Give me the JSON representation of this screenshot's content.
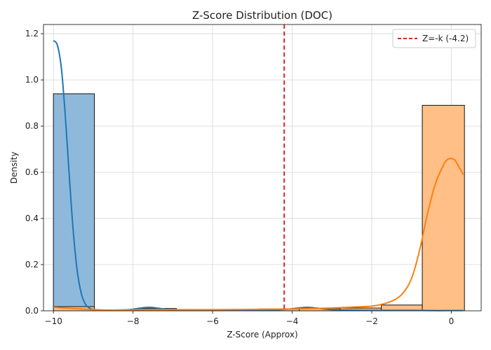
{
  "chart_data": {
    "type": "histogram_kde",
    "title": "Z-Score Distribution (DOC)",
    "xlabel": "Z-Score (Approx)",
    "ylabel": "Density",
    "xlim": [
      -10.25,
      0.75
    ],
    "ylim": [
      0,
      1.24
    ],
    "x_ticks": [
      -10,
      -8,
      -6,
      -4,
      -2,
      0
    ],
    "x_tick_labels": [
      "−10",
      "−8",
      "−6",
      "−4",
      "−2",
      "0"
    ],
    "y_ticks": [
      0.0,
      0.2,
      0.4,
      0.6,
      0.8,
      1.0,
      1.2
    ],
    "y_tick_labels": [
      "0.0",
      "0.2",
      "0.4",
      "0.6",
      "0.8",
      "1.0",
      "1.2"
    ],
    "grid": true,
    "legend_position": "top-right",
    "series": [
      {
        "color": "#1f77b4",
        "bar_color": "#8fb9db",
        "bins": [
          {
            "x0": -10.0,
            "x1": -8.97,
            "value": 0.94
          },
          {
            "x0": -8.97,
            "x1": -7.94,
            "value": 0.002
          },
          {
            "x0": -7.94,
            "x1": -6.91,
            "value": 0.01
          },
          {
            "x0": -6.91,
            "x1": -5.88,
            "value": 0.002
          },
          {
            "x0": -5.88,
            "x1": -4.85,
            "value": 0.002
          },
          {
            "x0": -4.85,
            "x1": -3.82,
            "value": 0.007
          },
          {
            "x0": -3.82,
            "x1": -2.79,
            "value": 0.012
          },
          {
            "x0": -2.79,
            "x1": -1.76,
            "value": 0.002
          },
          {
            "x0": -1.76,
            "x1": -0.73,
            "value": 0.001
          }
        ],
        "kde": {
          "x": [
            -10.0,
            -9.9,
            -9.8,
            -9.7,
            -9.6,
            -9.5,
            -9.4,
            -9.3,
            -9.2,
            -9.1,
            -9.0,
            -8.9,
            -8.7,
            -8.5,
            -8.2,
            -8.0,
            -7.8,
            -7.6,
            -7.4,
            -7.2,
            -7.0,
            -6.5,
            -6.0,
            -5.5,
            -5.0,
            -4.5,
            -4.2,
            -4.0,
            -3.8,
            -3.6,
            -3.4,
            -3.2,
            -3.0,
            -2.5,
            -2.0,
            -1.5,
            -1.0,
            -0.5,
            0.0,
            0.3
          ],
          "y": [
            1.17,
            1.15,
            1.05,
            0.84,
            0.58,
            0.34,
            0.17,
            0.075,
            0.03,
            0.012,
            0.006,
            0.004,
            0.003,
            0.003,
            0.004,
            0.007,
            0.012,
            0.015,
            0.012,
            0.007,
            0.004,
            0.002,
            0.002,
            0.002,
            0.002,
            0.004,
            0.006,
            0.009,
            0.013,
            0.015,
            0.012,
            0.008,
            0.005,
            0.003,
            0.002,
            0.002,
            0.002,
            0.001,
            0.001,
            0.001
          ]
        }
      },
      {
        "color": "#ff7f0e",
        "bar_color": "#ffbf86",
        "bins": [
          {
            "x0": -10.0,
            "x1": -8.97,
            "value": 0.018
          },
          {
            "x0": -8.97,
            "x1": -7.94,
            "value": 0.003
          },
          {
            "x0": -7.94,
            "x1": -6.91,
            "value": 0.005
          },
          {
            "x0": -6.91,
            "x1": -5.88,
            "value": 0.004
          },
          {
            "x0": -5.88,
            "x1": -4.85,
            "value": 0.004
          },
          {
            "x0": -4.85,
            "x1": -3.82,
            "value": 0.008
          },
          {
            "x0": -3.82,
            "x1": -2.79,
            "value": 0.01
          },
          {
            "x0": -2.79,
            "x1": -1.76,
            "value": 0.012
          },
          {
            "x0": -1.76,
            "x1": -0.73,
            "value": 0.025
          },
          {
            "x0": -0.73,
            "x1": 0.33,
            "value": 0.89
          }
        ],
        "kde": {
          "x": [
            -10.0,
            -9.5,
            -9.0,
            -8.5,
            -8.0,
            -7.0,
            -6.0,
            -5.0,
            -4.0,
            -3.0,
            -2.5,
            -2.0,
            -1.7,
            -1.4,
            -1.2,
            -1.0,
            -0.8,
            -0.6,
            -0.4,
            -0.2,
            -0.1,
            0.0,
            0.1,
            0.2,
            0.3
          ],
          "y": [
            0.015,
            0.01,
            0.005,
            0.003,
            0.004,
            0.005,
            0.005,
            0.006,
            0.008,
            0.012,
            0.016,
            0.02,
            0.03,
            0.05,
            0.08,
            0.14,
            0.26,
            0.42,
            0.55,
            0.63,
            0.655,
            0.66,
            0.65,
            0.62,
            0.59
          ]
        }
      }
    ],
    "reference_line": {
      "x": -4.2,
      "color": "#d62728",
      "style": "dashed",
      "label": "Z=-k (-4.2)"
    }
  }
}
